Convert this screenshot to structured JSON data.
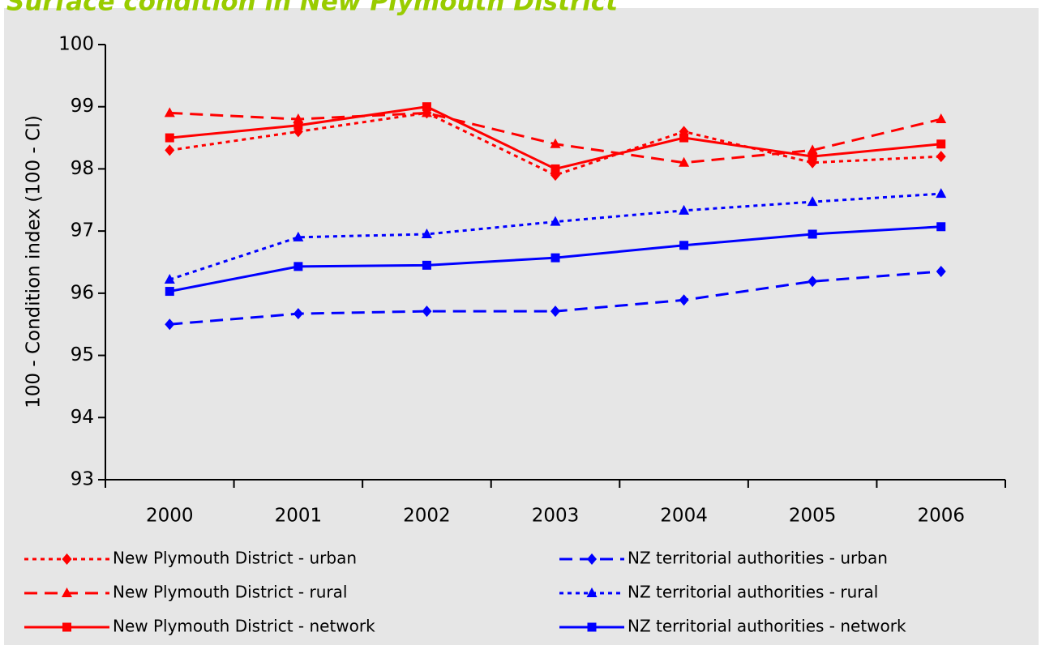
{
  "chart_data": {
    "type": "line",
    "title": "Surface condition in New Plymouth District",
    "y_label": "100 - Condition index (100 - CI)",
    "categories": [
      "2000",
      "2001",
      "2002",
      "2003",
      "2004",
      "2005",
      "2006"
    ],
    "ylim": [
      93,
      100
    ],
    "yticks": [
      93,
      94,
      95,
      96,
      97,
      98,
      99,
      100
    ],
    "legend": "bottom",
    "series": [
      {
        "name": "New Plymouth District - urban",
        "color": "#ff0000",
        "dash": "dotted",
        "marker": "diamond",
        "values": [
          98.3,
          98.6,
          98.9,
          97.9,
          98.6,
          98.1,
          98.2
        ]
      },
      {
        "name": "New Plymouth District - rural",
        "color": "#ff0000",
        "dash": "dashed",
        "marker": "triangle",
        "values": [
          98.9,
          98.8,
          98.9,
          98.4,
          98.1,
          98.3,
          98.8
        ]
      },
      {
        "name": "New Plymouth District - network",
        "color": "#ff0000",
        "dash": "solid",
        "marker": "square",
        "values": [
          98.5,
          98.7,
          99.0,
          98.0,
          98.5,
          98.2,
          98.4
        ]
      },
      {
        "name": "NZ territorial authorities - urban",
        "color": "#0000ff",
        "dash": "dashed",
        "marker": "diamond",
        "values": [
          95.5,
          95.67,
          95.71,
          95.71,
          95.89,
          96.19,
          96.35
        ]
      },
      {
        "name": "NZ territorial authorities - rural",
        "color": "#0000ff",
        "dash": "dotted",
        "marker": "triangle",
        "values": [
          96.22,
          96.9,
          96.95,
          97.15,
          97.33,
          97.47,
          97.6
        ]
      },
      {
        "name": "NZ territorial authorities - network",
        "color": "#0000ff",
        "dash": "solid",
        "marker": "square",
        "values": [
          96.03,
          96.43,
          96.45,
          96.57,
          96.77,
          96.95,
          97.07
        ]
      }
    ]
  }
}
